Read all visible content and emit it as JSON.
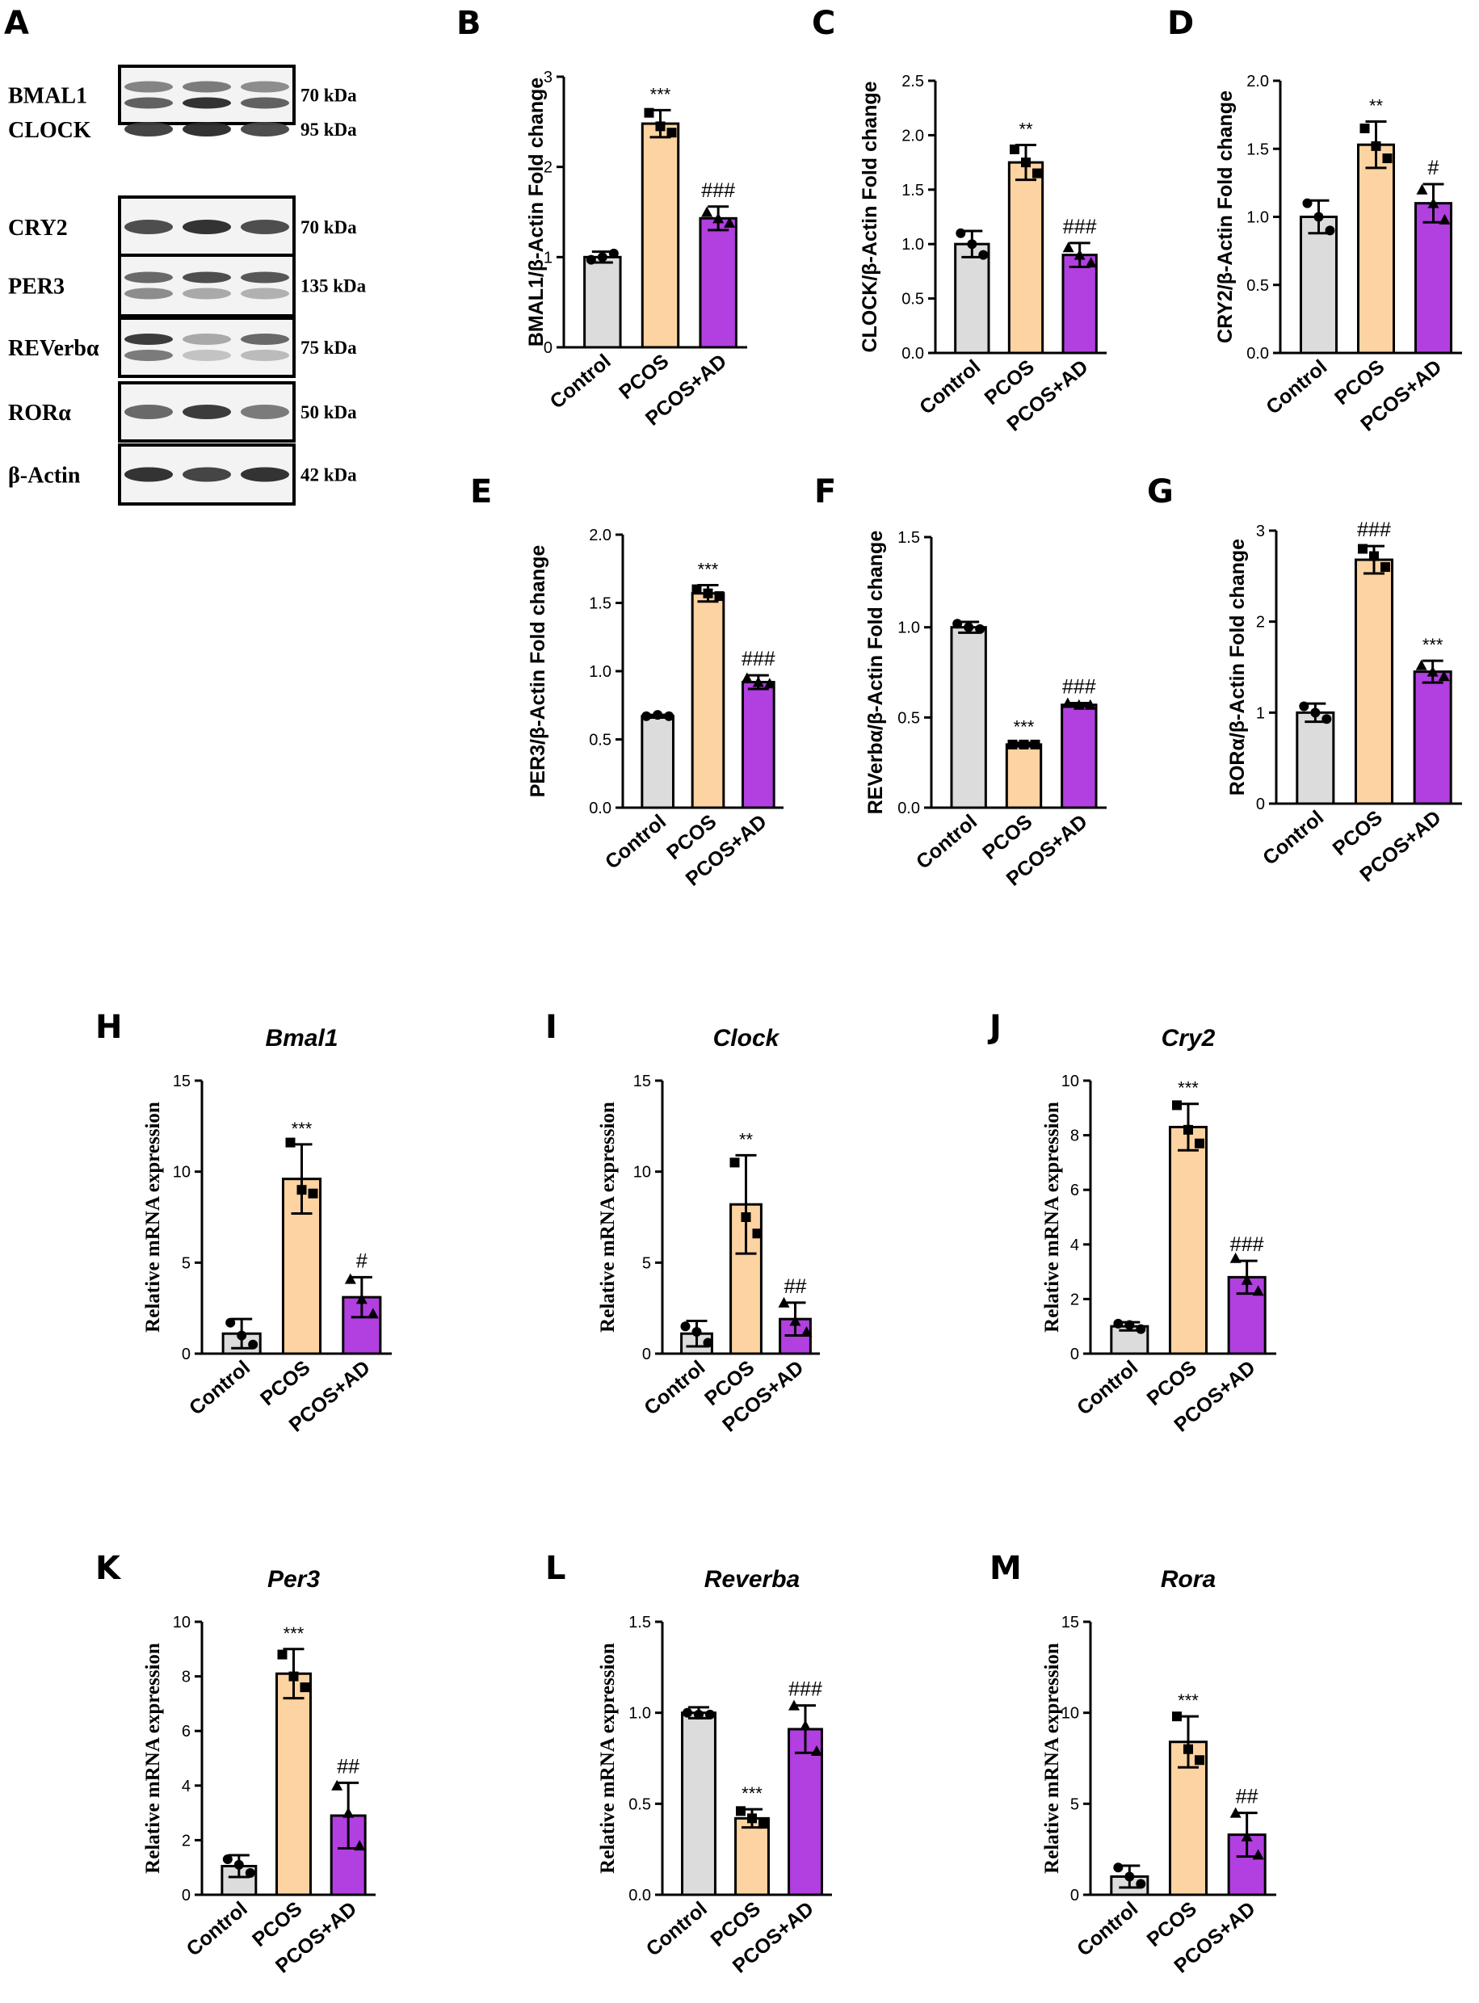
{
  "colors": {
    "control": "#dcdcdc",
    "pcos": "#fcd3a1",
    "pcos_ad": "#b23fe0",
    "stroke": "#000000"
  },
  "blot": {
    "letter": "A",
    "rows": [
      {
        "protein": "BMAL1",
        "kda": "70 kDa"
      },
      {
        "protein": "CLOCK",
        "kda": "95 kDa"
      },
      {
        "protein": "CRY2",
        "kda": "70 kDa"
      },
      {
        "protein": "PER3",
        "kda": "135 kDa"
      },
      {
        "protein": "REVerbα",
        "kda": "75 kDa"
      },
      {
        "protein": "RORα",
        "kda": "50 kDa"
      },
      {
        "protein": "β-Actin",
        "kda": "42 kDa"
      }
    ]
  },
  "chart_data": [
    {
      "letter": "B",
      "type": "bar",
      "title": "",
      "ylabel": "BMAL1/β-Actin Fold change",
      "categories": [
        "Control",
        "PCOS",
        "PCOS+AD"
      ],
      "values": [
        1.0,
        2.48,
        1.43
      ],
      "errors": [
        0.06,
        0.15,
        0.13
      ],
      "points": [
        [
          0.97,
          1.0,
          1.04
        ],
        [
          2.6,
          2.45,
          2.38
        ],
        [
          1.5,
          1.43,
          1.38
        ]
      ],
      "ylim": [
        0,
        3
      ],
      "yticks": [
        "0",
        "1",
        "2",
        "3"
      ],
      "annotations": [
        "",
        "***",
        "###"
      ]
    },
    {
      "letter": "C",
      "type": "bar",
      "title": "",
      "ylabel": "CLOCK/β-Actin Fold change",
      "categories": [
        "Control",
        "PCOS",
        "PCOS+AD"
      ],
      "values": [
        1.0,
        1.75,
        0.9
      ],
      "errors": [
        0.12,
        0.16,
        0.11
      ],
      "points": [
        [
          1.1,
          1.0,
          0.9
        ],
        [
          1.87,
          1.75,
          1.65
        ],
        [
          0.97,
          0.9,
          0.83
        ]
      ],
      "ylim": [
        0,
        2.5
      ],
      "yticks": [
        "0.0",
        "0.5",
        "1.0",
        "1.5",
        "2.0",
        "2.5"
      ],
      "annotations": [
        "",
        "**",
        "###"
      ]
    },
    {
      "letter": "D",
      "type": "bar",
      "title": "",
      "ylabel": "CRY2/β-Actin Fold change",
      "categories": [
        "Control",
        "PCOS",
        "PCOS+AD"
      ],
      "values": [
        1.0,
        1.53,
        1.1
      ],
      "errors": [
        0.12,
        0.17,
        0.14
      ],
      "points": [
        [
          1.1,
          1.0,
          0.9
        ],
        [
          1.65,
          1.52,
          1.43
        ],
        [
          1.2,
          1.1,
          0.98
        ]
      ],
      "ylim": [
        0,
        2.0
      ],
      "yticks": [
        "0.0",
        "0.5",
        "1.0",
        "1.5",
        "2.0"
      ],
      "annotations": [
        "",
        "**",
        "#"
      ]
    },
    {
      "letter": "E",
      "type": "bar",
      "title": "",
      "ylabel": "PER3/β-Actin Fold change",
      "categories": [
        "Control",
        "PCOS",
        "PCOS+AD"
      ],
      "values": [
        0.67,
        1.57,
        0.92
      ],
      "errors": [
        0.01,
        0.06,
        0.05
      ],
      "points": [
        [
          0.67,
          0.68,
          0.67
        ],
        [
          1.6,
          1.57,
          1.55
        ],
        [
          0.95,
          0.92,
          0.91
        ]
      ],
      "ylim": [
        0,
        2.0
      ],
      "yticks": [
        "0.0",
        "0.5",
        "1.0",
        "1.5",
        "2.0"
      ],
      "annotations": [
        "",
        "***",
        "###"
      ]
    },
    {
      "letter": "F",
      "type": "bar",
      "title": "",
      "ylabel": "REVerbα/β-Actin Fold change",
      "categories": [
        "Control",
        "PCOS",
        "PCOS+AD"
      ],
      "values": [
        1.0,
        0.35,
        0.57
      ],
      "errors": [
        0.03,
        0.01,
        0.01
      ],
      "points": [
        [
          1.02,
          1.0,
          0.99
        ],
        [
          0.35,
          0.35,
          0.35
        ],
        [
          0.58,
          0.57,
          0.57
        ]
      ],
      "ylim": [
        0,
        1.5
      ],
      "yticks": [
        "0.0",
        "0.5",
        "1.0",
        "1.5"
      ],
      "annotations": [
        "",
        "***",
        "###"
      ]
    },
    {
      "letter": "G",
      "type": "bar",
      "title": "",
      "ylabel": "RORα/β-Actin Fold change",
      "categories": [
        "Control",
        "PCOS",
        "PCOS+AD"
      ],
      "values": [
        1.0,
        2.68,
        1.45
      ],
      "errors": [
        0.1,
        0.15,
        0.12
      ],
      "points": [
        [
          1.07,
          1.0,
          0.93
        ],
        [
          2.8,
          2.72,
          2.6
        ],
        [
          1.52,
          1.45,
          1.4
        ]
      ],
      "ylim": [
        0,
        3
      ],
      "yticks": [
        "0",
        "1",
        "2",
        "3"
      ],
      "annotations": [
        "",
        "###",
        "***"
      ]
    },
    {
      "letter": "H",
      "type": "bar",
      "title": "Bmal1",
      "ylabel": "Relative mRNA expression",
      "categories": [
        "Control",
        "PCOS",
        "PCOS+AD"
      ],
      "values": [
        1.1,
        9.6,
        3.1
      ],
      "errors": [
        0.8,
        1.9,
        1.1
      ],
      "points": [
        [
          1.7,
          1.0,
          0.5
        ],
        [
          11.6,
          9.0,
          8.8
        ],
        [
          4.1,
          3.0,
          2.2
        ]
      ],
      "ylim": [
        0,
        15
      ],
      "yticks": [
        "0",
        "5",
        "10",
        "15"
      ],
      "annotations": [
        "",
        "***",
        "#"
      ]
    },
    {
      "letter": "I",
      "type": "bar",
      "title": "Clock",
      "ylabel": "Relative mRNA expression",
      "categories": [
        "Control",
        "PCOS",
        "PCOS+AD"
      ],
      "values": [
        1.1,
        8.2,
        1.9
      ],
      "errors": [
        0.7,
        2.7,
        0.9
      ],
      "points": [
        [
          1.5,
          1.2,
          0.6
        ],
        [
          10.5,
          7.5,
          6.6
        ],
        [
          2.8,
          1.8,
          1.2
        ]
      ],
      "ylim": [
        0,
        15
      ],
      "yticks": [
        "0",
        "5",
        "10",
        "15"
      ],
      "annotations": [
        "",
        "**",
        "##"
      ]
    },
    {
      "letter": "J",
      "type": "bar",
      "title": "Cry2",
      "ylabel": "Relative mRNA expression",
      "categories": [
        "Control",
        "PCOS",
        "PCOS+AD"
      ],
      "values": [
        1.0,
        8.3,
        2.8
      ],
      "errors": [
        0.15,
        0.85,
        0.6
      ],
      "points": [
        [
          1.1,
          1.05,
          0.9
        ],
        [
          9.1,
          8.2,
          7.7
        ],
        [
          3.5,
          2.7,
          2.3
        ]
      ],
      "ylim": [
        0,
        10
      ],
      "yticks": [
        "0",
        "2",
        "4",
        "6",
        "8",
        "10"
      ],
      "annotations": [
        "",
        "***",
        "###"
      ]
    },
    {
      "letter": "K",
      "type": "bar",
      "title": "Per3",
      "ylabel": "Relative mRNA expression",
      "categories": [
        "Control",
        "PCOS",
        "PCOS+AD"
      ],
      "values": [
        1.05,
        8.1,
        2.9
      ],
      "errors": [
        0.4,
        0.9,
        1.2
      ],
      "points": [
        [
          1.3,
          1.1,
          0.8
        ],
        [
          8.8,
          8.0,
          7.6
        ],
        [
          4.0,
          3.0,
          1.8
        ]
      ],
      "ylim": [
        0,
        10
      ],
      "yticks": [
        "0",
        "2",
        "4",
        "6",
        "8",
        "10"
      ],
      "annotations": [
        "",
        "***",
        "##"
      ]
    },
    {
      "letter": "L",
      "type": "bar",
      "title": "Reverba",
      "ylabel": "Relative mRNA expression",
      "categories": [
        "Control",
        "PCOS",
        "PCOS+AD"
      ],
      "values": [
        1.0,
        0.42,
        0.91
      ],
      "errors": [
        0.03,
        0.05,
        0.13
      ],
      "points": [
        [
          1.0,
          0.99,
          0.99
        ],
        [
          0.46,
          0.42,
          0.39
        ],
        [
          1.04,
          0.93,
          0.79
        ]
      ],
      "ylim": [
        0,
        1.5
      ],
      "yticks": [
        "0.0",
        "0.5",
        "1.0",
        "1.5"
      ],
      "annotations": [
        "",
        "***",
        "###"
      ]
    },
    {
      "letter": "M",
      "type": "bar",
      "title": "Rora",
      "ylabel": "Relative mRNA expression",
      "categories": [
        "Control",
        "PCOS",
        "PCOS+AD"
      ],
      "values": [
        1.0,
        8.4,
        3.3
      ],
      "errors": [
        0.6,
        1.4,
        1.2
      ],
      "points": [
        [
          1.5,
          1.0,
          0.6
        ],
        [
          9.8,
          8.0,
          7.4
        ],
        [
          4.5,
          3.2,
          2.2
        ]
      ],
      "ylim": [
        0,
        15
      ],
      "yticks": [
        "0",
        "5",
        "10",
        "15"
      ],
      "annotations": [
        "",
        "***",
        "##"
      ]
    }
  ]
}
